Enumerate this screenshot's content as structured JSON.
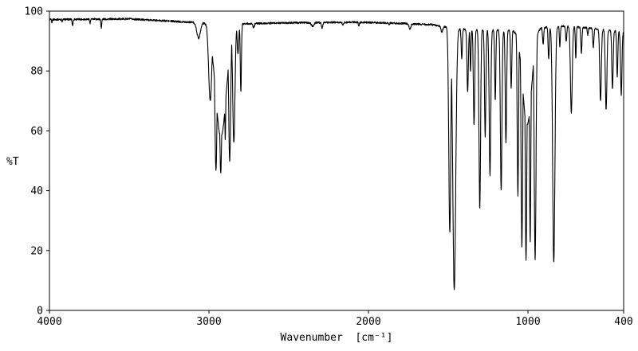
{
  "chart_data": {
    "type": "line",
    "title": "",
    "xlabel": "Wavenumber  [cm⁻¹]",
    "ylabel": "%T",
    "x_ticks": [
      4000,
      3000,
      2000,
      1000,
      400
    ],
    "y_ticks": [
      100,
      80,
      60,
      40,
      20,
      0
    ],
    "xlim": [
      4000,
      400
    ],
    "x_axis_reversed": true,
    "ylim": [
      0,
      100
    ],
    "grid": false,
    "legend": "none",
    "line_color": "#000000",
    "background_color": "#ffffff",
    "noise_amplitude": 0.6,
    "baseline": [
      [
        4000,
        97.2
      ],
      [
        3500,
        97.4
      ],
      [
        3150,
        96.4
      ],
      [
        2780,
        95.8
      ],
      [
        2500,
        96.1
      ],
      [
        2100,
        96.3
      ],
      [
        1900,
        96.1
      ],
      [
        1600,
        95.5
      ],
      [
        1430,
        94.0
      ],
      [
        1100,
        93.5
      ],
      [
        920,
        94.5
      ],
      [
        770,
        95.0
      ],
      [
        640,
        94.5
      ],
      [
        400,
        93.0
      ]
    ],
    "peaks": [
      {
        "wn": 3985,
        "T": 96.0,
        "w": 3
      },
      {
        "wn": 3920,
        "T": 96.4,
        "w": 3
      },
      {
        "wn": 3855,
        "T": 95.2,
        "w": 4
      },
      {
        "wn": 3745,
        "T": 95.8,
        "w": 3
      },
      {
        "wn": 3675,
        "T": 94.5,
        "w": 4
      },
      {
        "wn": 3065,
        "T": 91.0,
        "w": 16
      },
      {
        "wn": 2992,
        "T": 70.0,
        "w": 14
      },
      {
        "wn": 2956,
        "T": 47.0,
        "w": 10
      },
      {
        "wn": 2926,
        "T": 46.0,
        "w": 11
      },
      {
        "wn": 2898,
        "T": 57.0,
        "w": 6
      },
      {
        "wn": 2870,
        "T": 50.0,
        "w": 9
      },
      {
        "wn": 2844,
        "T": 56.0,
        "w": 10
      },
      {
        "wn": 2925,
        "T": 58.0,
        "w": 48
      },
      {
        "wn": 2818,
        "T": 86.0,
        "w": 7
      },
      {
        "wn": 2800,
        "T": 73.0,
        "w": 5
      },
      {
        "wn": 2720,
        "T": 94.5,
        "w": 6
      },
      {
        "wn": 2350,
        "T": 95.0,
        "w": 12
      },
      {
        "wn": 2290,
        "T": 94.3,
        "w": 6
      },
      {
        "wn": 2160,
        "T": 95.2,
        "w": 5
      },
      {
        "wn": 2060,
        "T": 95.0,
        "w": 4
      },
      {
        "wn": 1870,
        "T": 95.6,
        "w": 4
      },
      {
        "wn": 1740,
        "T": 94.0,
        "w": 8
      },
      {
        "wn": 1540,
        "T": 93.0,
        "w": 8
      },
      {
        "wn": 1490,
        "T": 26.0,
        "w": 9
      },
      {
        "wn": 1462,
        "T": 7.0,
        "w": 13
      },
      {
        "wn": 1415,
        "T": 84.0,
        "w": 5
      },
      {
        "wn": 1378,
        "T": 73.0,
        "w": 6
      },
      {
        "wn": 1360,
        "T": 80.0,
        "w": 4
      },
      {
        "wn": 1338,
        "T": 62.0,
        "w": 6
      },
      {
        "wn": 1302,
        "T": 34.0,
        "w": 7
      },
      {
        "wn": 1268,
        "T": 58.0,
        "w": 6
      },
      {
        "wn": 1238,
        "T": 45.0,
        "w": 7
      },
      {
        "wn": 1205,
        "T": 70.0,
        "w": 5
      },
      {
        "wn": 1168,
        "T": 40.0,
        "w": 7
      },
      {
        "wn": 1138,
        "T": 56.0,
        "w": 6
      },
      {
        "wn": 1105,
        "T": 74.0,
        "w": 5
      },
      {
        "wn": 1063,
        "T": 38.0,
        "w": 6
      },
      {
        "wn": 1038,
        "T": 21.0,
        "w": 7
      },
      {
        "wn": 1012,
        "T": 17.0,
        "w": 7
      },
      {
        "wn": 986,
        "T": 23.0,
        "w": 6
      },
      {
        "wn": 955,
        "T": 17.0,
        "w": 8
      },
      {
        "wn": 1005,
        "T": 62.0,
        "w": 40
      },
      {
        "wn": 905,
        "T": 89.0,
        "w": 5
      },
      {
        "wn": 870,
        "T": 84.0,
        "w": 5
      },
      {
        "wn": 838,
        "T": 16.0,
        "w": 10
      },
      {
        "wn": 800,
        "T": 88.0,
        "w": 4
      },
      {
        "wn": 760,
        "T": 90.0,
        "w": 5
      },
      {
        "wn": 728,
        "T": 66.0,
        "w": 8
      },
      {
        "wn": 700,
        "T": 84.0,
        "w": 4
      },
      {
        "wn": 665,
        "T": 86.0,
        "w": 5
      },
      {
        "wn": 625,
        "T": 92.0,
        "w": 4
      },
      {
        "wn": 590,
        "T": 88.0,
        "w": 5
      },
      {
        "wn": 545,
        "T": 70.0,
        "w": 7
      },
      {
        "wn": 510,
        "T": 67.0,
        "w": 7
      },
      {
        "wn": 470,
        "T": 74.0,
        "w": 6
      },
      {
        "wn": 440,
        "T": 78.0,
        "w": 5
      },
      {
        "wn": 415,
        "T": 72.0,
        "w": 6
      }
    ]
  }
}
